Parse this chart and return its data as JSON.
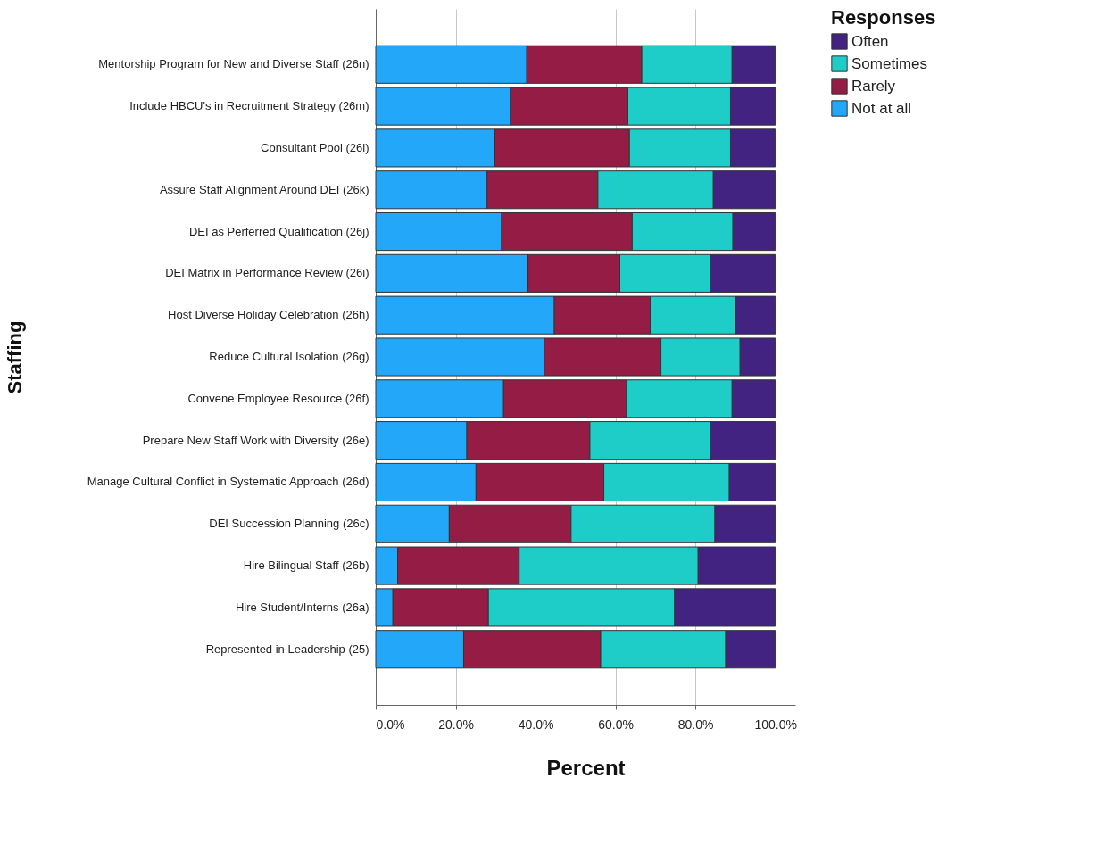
{
  "chart_data": {
    "type": "bar",
    "orientation": "horizontal",
    "stacked": true,
    "xlabel": "Percent",
    "ylabel": "Staffing",
    "legend_title": "Responses",
    "legend": "top right",
    "grid": "x",
    "categories": [
      "Mentorship Program for New and Diverse Staff (26n)",
      "Include HBCU's in Recruitment Strategy (26m)",
      "Consultant Pool (26l)",
      "Assure Staff Alignment Around DEI (26k)",
      "DEI as Perferred Qualification (26j)",
      "DEI Matrix in Performance Review (26i)",
      "Host Diverse Holiday Celebration (26h)",
      "Reduce Cultural Isolation (26g)",
      "Convene Employee Resource (26f)",
      "Prepare New Staff Work with Diversity (26e)",
      "Manage Cultural Conflict in Systematic Approach (26d)",
      "DEI Succession Planning (26c)",
      "Hire Bilingual Staff (26b)",
      "Hire Student/Interns (26a)",
      "Represented in Leadership (25)"
    ],
    "xlim": [
      0,
      105
    ],
    "xticks": [
      {
        "value": 0,
        "label": "0.0%"
      },
      {
        "value": 20,
        "label": "20.0%"
      },
      {
        "value": 40,
        "label": "40.0%"
      },
      {
        "value": 60,
        "label": "60.0%"
      },
      {
        "value": 80,
        "label": "80.0%"
      },
      {
        "value": 100,
        "label": "100.0%"
      }
    ],
    "series": [
      {
        "name": "Not at all",
        "color": "#23a7f9",
        "values": [
          37.8,
          33.7,
          29.8,
          27.9,
          31.5,
          38.1,
          44.7,
          42.2,
          32.0,
          22.8,
          25.1,
          18.4,
          5.5,
          4.3,
          22.0
        ]
      },
      {
        "name": "Rarely",
        "color": "#951c45",
        "values": [
          28.8,
          29.4,
          33.7,
          27.7,
          32.7,
          23.0,
          24.0,
          29.2,
          30.7,
          30.8,
          32.0,
          30.5,
          30.4,
          23.9,
          34.3
        ]
      },
      {
        "name": "Sometimes",
        "color": "#1fcdc8",
        "values": [
          22.6,
          25.7,
          25.3,
          28.9,
          25.2,
          22.7,
          21.4,
          19.8,
          26.5,
          30.2,
          31.4,
          36.0,
          44.8,
          46.6,
          31.3
        ]
      },
      {
        "name": "Often",
        "color": "#422382",
        "values": [
          10.8,
          11.2,
          11.2,
          15.5,
          10.6,
          16.2,
          9.9,
          8.8,
          10.8,
          16.2,
          11.5,
          15.1,
          19.3,
          25.2,
          12.4
        ]
      }
    ]
  }
}
